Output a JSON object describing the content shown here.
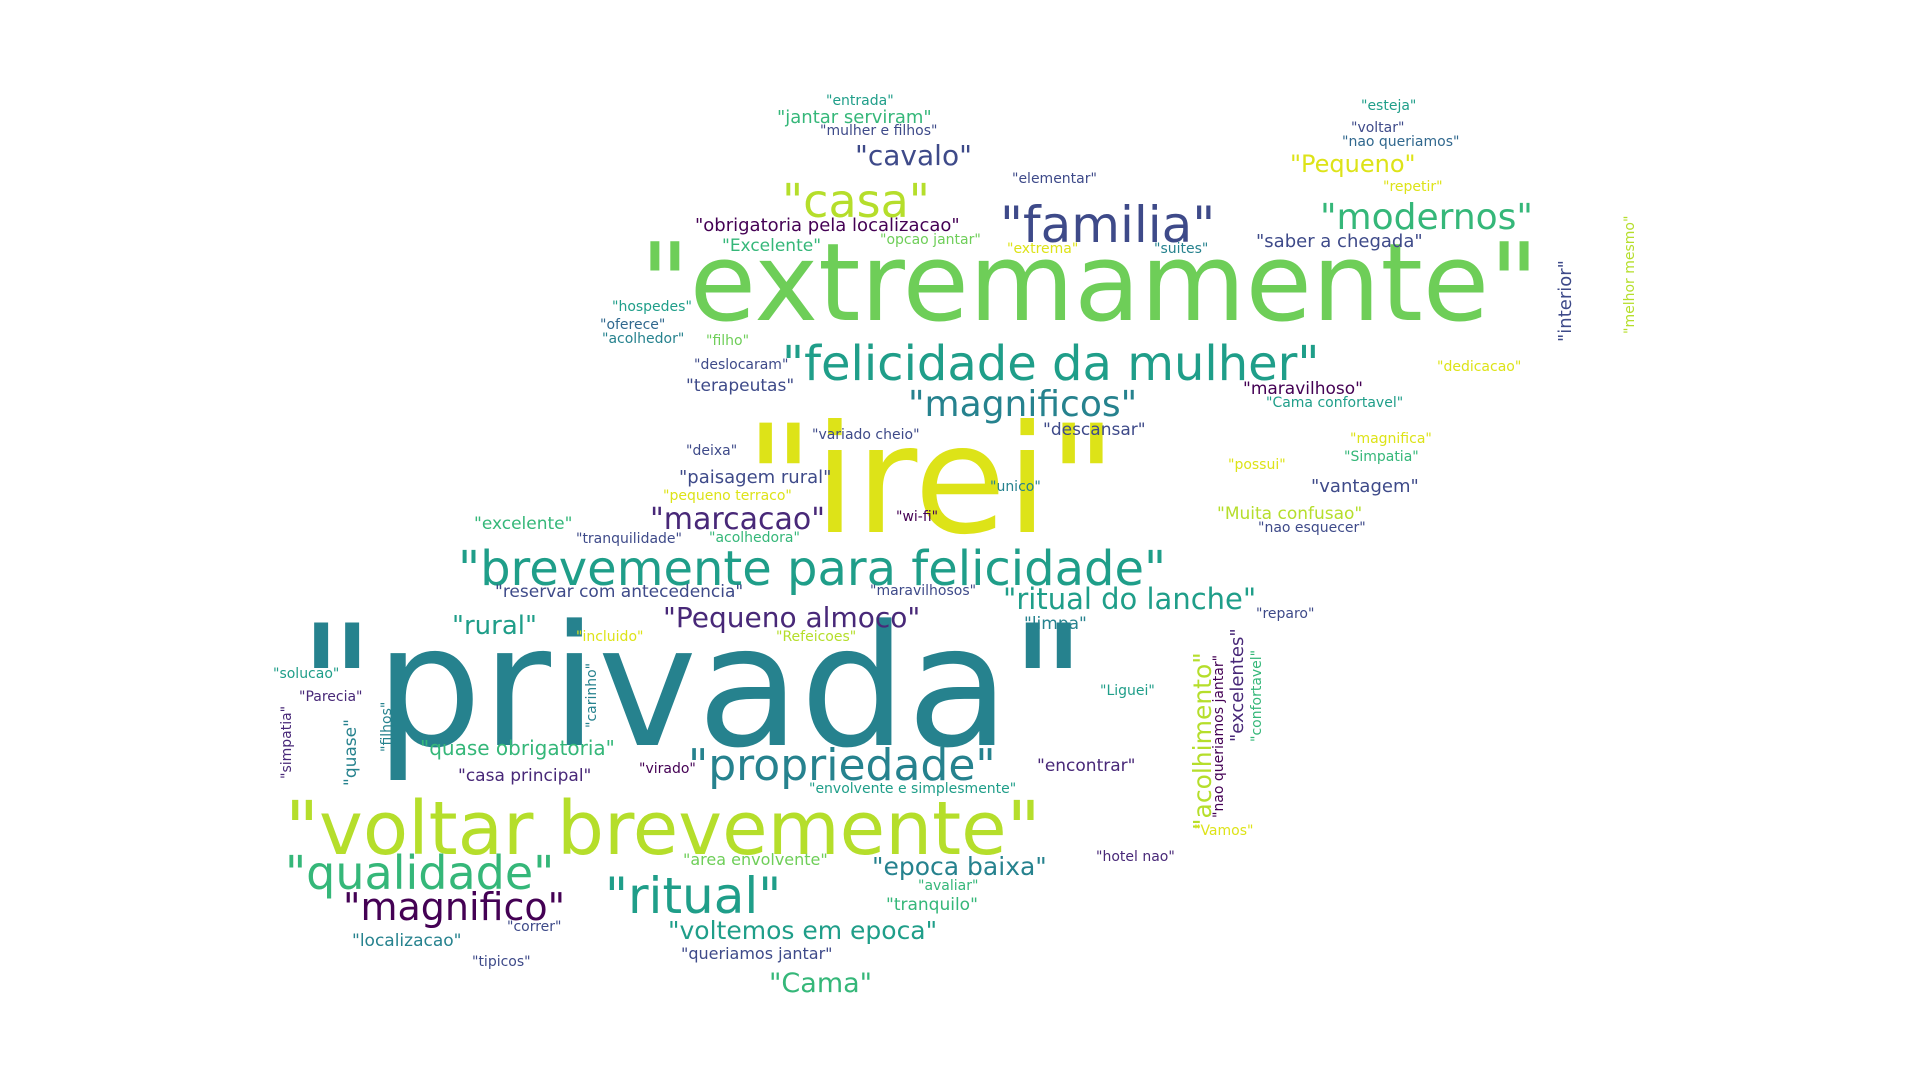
{
  "colors": {
    "v0": "#440154",
    "v1": "#482878",
    "v2": "#3e4a89",
    "v3": "#31688e",
    "v4": "#26828e",
    "v5": "#1f9e89",
    "v6": "#35b779",
    "v7": "#6ece58",
    "v8": "#b5de2b",
    "v9": "#dde318"
  },
  "words": [
    {
      "text": "\"privada\"",
      "color": "v4"
    },
    {
      "text": "\"irei\"",
      "color": "v9"
    },
    {
      "text": "\"extremamente\"",
      "color": "v7"
    },
    {
      "text": "\"voltar brevemente\"",
      "color": "v8"
    },
    {
      "text": "\"brevemente para felicidade\"",
      "color": "v5"
    },
    {
      "text": "\"felicidade da mulher\"",
      "color": "v5"
    },
    {
      "text": "\"familia\"",
      "color": "v2"
    },
    {
      "text": "\"casa\"",
      "color": "v8"
    },
    {
      "text": "\"modernos\"",
      "color": "v6"
    },
    {
      "text": "\"magnificos\"",
      "color": "v4"
    },
    {
      "text": "\"ritual\"",
      "color": "v5"
    },
    {
      "text": "\"qualidade\"",
      "color": "v6"
    },
    {
      "text": "\"propriedade\"",
      "color": "v4"
    },
    {
      "text": "\"magnifico\"",
      "color": "v0"
    },
    {
      "text": "\"cavalo\"",
      "color": "v2"
    },
    {
      "text": "\"Pequeno\"",
      "color": "v9"
    },
    {
      "text": "\"marcacao\"",
      "color": "v1"
    },
    {
      "text": "\"ritual do lanche\"",
      "color": "v5"
    },
    {
      "text": "\"Pequeno almoco\"",
      "color": "v1"
    },
    {
      "text": "\"rural\"",
      "color": "v5"
    },
    {
      "text": "\"epoca baixa\"",
      "color": "v4"
    },
    {
      "text": "\"voltemos em epoca\"",
      "color": "v5"
    },
    {
      "text": "\"Cama\"",
      "color": "v6"
    },
    {
      "text": "\"acolhimento\"",
      "color": "v8"
    },
    {
      "text": "\"quase obrigatoria\"",
      "color": "v6"
    },
    {
      "text": "\"obrigatoria pela localizacao\"",
      "color": "v0"
    },
    {
      "text": "\"saber a chegada\"",
      "color": "v2"
    },
    {
      "text": "\"jantar serviram\"",
      "color": "v6"
    },
    {
      "text": "\"entrada\"",
      "color": "v5"
    },
    {
      "text": "\"mulher e filhos\"",
      "color": "v2"
    },
    {
      "text": "\"elementar\"",
      "color": "v2"
    },
    {
      "text": "\"Excelente\"",
      "color": "v6"
    },
    {
      "text": "\"opcao jantar\"",
      "color": "v7"
    },
    {
      "text": "\"extrema\"",
      "color": "v9"
    },
    {
      "text": "\"suites\"",
      "color": "v4"
    },
    {
      "text": "\"esteja\"",
      "color": "v5"
    },
    {
      "text": "\"voltar\"",
      "color": "v2"
    },
    {
      "text": "\"nao queriamos\"",
      "color": "v3"
    },
    {
      "text": "\"repetir\"",
      "color": "v9"
    },
    {
      "text": "\"interior\"",
      "color": "v2"
    },
    {
      "text": "\"melhor mesmo\"",
      "color": "v8"
    },
    {
      "text": "\"hospedes\"",
      "color": "v5"
    },
    {
      "text": "\"oferece\"",
      "color": "v3"
    },
    {
      "text": "\"acolhedor\"",
      "color": "v4"
    },
    {
      "text": "\"filho\"",
      "color": "v7"
    },
    {
      "text": "\"deslocaram\"",
      "color": "v2"
    },
    {
      "text": "\"terapeutas\"",
      "color": "v2"
    },
    {
      "text": "\"maravilhoso\"",
      "color": "v0"
    },
    {
      "text": "\"dedicacao\"",
      "color": "v9"
    },
    {
      "text": "\"Cama confortavel\"",
      "color": "v5"
    },
    {
      "text": "\"descansar\"",
      "color": "v2"
    },
    {
      "text": "\"variado cheio\"",
      "color": "v2"
    },
    {
      "text": "\"deixa\"",
      "color": "v2"
    },
    {
      "text": "\"magnifica\"",
      "color": "v9"
    },
    {
      "text": "\"Simpatia\"",
      "color": "v6"
    },
    {
      "text": "\"paisagem rural\"",
      "color": "v2"
    },
    {
      "text": "\"possui\"",
      "color": "v9"
    },
    {
      "text": "\"unico\"",
      "color": "v4"
    },
    {
      "text": "\"vantagem\"",
      "color": "v2"
    },
    {
      "text": "\"pequeno terraco\"",
      "color": "v9"
    },
    {
      "text": "\"Muita confusao\"",
      "color": "v8"
    },
    {
      "text": "\"wi-fi\"",
      "color": "v0"
    },
    {
      "text": "\"excelente\"",
      "color": "v6"
    },
    {
      "text": "\"tranquilidade\"",
      "color": "v2"
    },
    {
      "text": "\"acolhedora\"",
      "color": "v6"
    },
    {
      "text": "\"nao esquecer\"",
      "color": "v2"
    },
    {
      "text": "\"reservar com antecedencia\"",
      "color": "v2"
    },
    {
      "text": "\"maravilhosos\"",
      "color": "v2"
    },
    {
      "text": "\"reparo\"",
      "color": "v2"
    },
    {
      "text": "\"incluido\"",
      "color": "v9"
    },
    {
      "text": "\"Refeicoes\"",
      "color": "v8"
    },
    {
      "text": "\"limpa\"",
      "color": "v4"
    },
    {
      "text": "\"excelentes\"",
      "color": "v1"
    },
    {
      "text": "\"confortavel\"",
      "color": "v6"
    },
    {
      "text": "\"nao queriamos jantar\"",
      "color": "v0"
    },
    {
      "text": "\"solucao\"",
      "color": "v5"
    },
    {
      "text": "\"Parecia\"",
      "color": "v1"
    },
    {
      "text": "\"simpatia\"",
      "color": "v1"
    },
    {
      "text": "\"filhos\"",
      "color": "v4"
    },
    {
      "text": "\"quase\"",
      "color": "v4"
    },
    {
      "text": "\"carinho\"",
      "color": "v4"
    },
    {
      "text": "\"Liguei\"",
      "color": "v5"
    },
    {
      "text": "\"casa principal\"",
      "color": "v1"
    },
    {
      "text": "\"virado\"",
      "color": "v0"
    },
    {
      "text": "\"encontrar\"",
      "color": "v1"
    },
    {
      "text": "\"envolvente e simplesmente\"",
      "color": "v5"
    },
    {
      "text": "\"Vamos\"",
      "color": "v9"
    },
    {
      "text": "\"area envolvente\"",
      "color": "v7"
    },
    {
      "text": "\"hotel nao\"",
      "color": "v1"
    },
    {
      "text": "\"avaliar\"",
      "color": "v6"
    },
    {
      "text": "\"tranquilo\"",
      "color": "v6"
    },
    {
      "text": "\"correr\"",
      "color": "v2"
    },
    {
      "text": "\"localizacao\"",
      "color": "v4"
    },
    {
      "text": "\"queriamos jantar\"",
      "color": "v2"
    },
    {
      "text": "\"tipicos\"",
      "color": "v2"
    }
  ]
}
